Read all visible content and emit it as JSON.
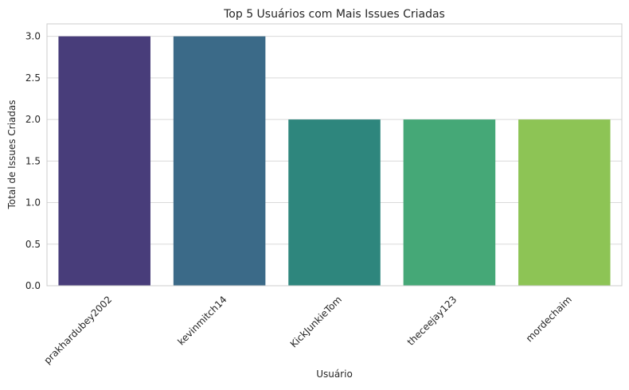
{
  "chart_data": {
    "type": "bar",
    "title": "Top 5 Usuários com Mais Issues Criadas",
    "xlabel": "Usuário",
    "ylabel": "Total de Issues Criadas",
    "categories": [
      "prakhardubey2002",
      "kevinmitch14",
      "KickJunkieTom",
      "theceejay123",
      "mordechaim"
    ],
    "values": [
      3,
      3,
      2,
      2,
      2
    ],
    "ylim": [
      0,
      3.15
    ],
    "yticks": [
      "0.0",
      "0.5",
      "1.0",
      "1.5",
      "2.0",
      "2.5",
      "3.0"
    ],
    "colors": [
      "#483d7a",
      "#3b6a88",
      "#2e867d",
      "#45a877",
      "#8dc455"
    ],
    "grid": "horizontal",
    "style": "seaborn-whitegrid"
  }
}
